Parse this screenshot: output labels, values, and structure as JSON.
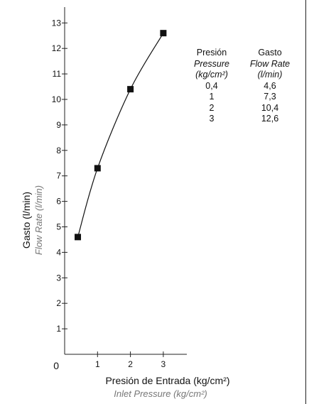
{
  "chart_data": {
    "type": "line",
    "x": [
      0.4,
      1,
      2,
      3
    ],
    "y": [
      4.6,
      7.3,
      10.4,
      12.6
    ],
    "xlim": [
      0,
      3.6
    ],
    "ylim": [
      0,
      13.8
    ],
    "xticks": [
      "1",
      "2",
      "3"
    ],
    "xtick_values": [
      1,
      2,
      3
    ],
    "yticks": [
      "1",
      "2",
      "3",
      "4",
      "5",
      "6",
      "7",
      "8",
      "9",
      "10",
      "11",
      "12",
      "13"
    ],
    "ytick_values": [
      1,
      2,
      3,
      4,
      5,
      6,
      7,
      8,
      9,
      10,
      11,
      12,
      13
    ],
    "origin_label": "0",
    "xlabel": "Presión de Entrada (kg/cm²)",
    "xlabel_en": "Inlet Pressure  (kg/cm²)",
    "ylabel": "Gasto (l/min)",
    "ylabel_en": "Flow Rate (l/min)",
    "grid": false,
    "marker": "square",
    "table": {
      "headers": [
        [
          "Presión",
          "Pressure",
          "(kg/cm²)"
        ],
        [
          "Gasto",
          "Flow Rate",
          "(l/min)"
        ]
      ],
      "rows": [
        [
          "0,4",
          "4,6"
        ],
        [
          "1",
          "7,3"
        ],
        [
          "2",
          "10,4"
        ],
        [
          "3",
          "12,6"
        ]
      ]
    }
  }
}
